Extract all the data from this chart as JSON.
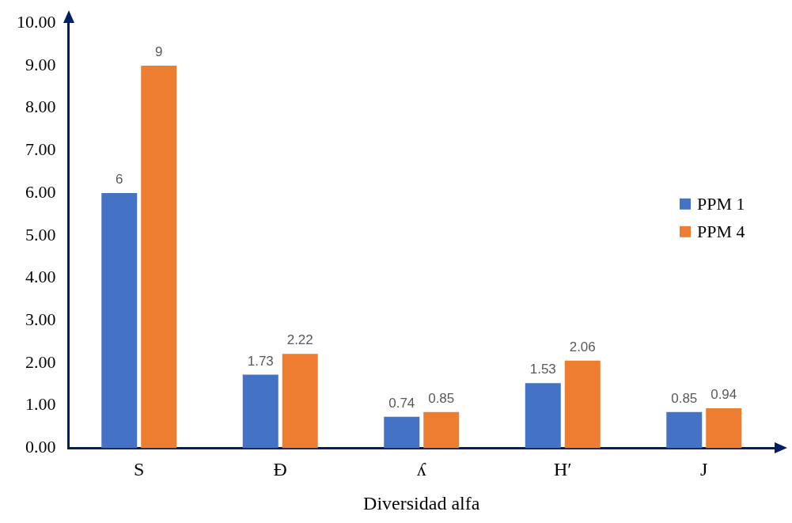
{
  "chart_data": {
    "type": "bar",
    "xlabel": "Diversidad alfa",
    "categories": [
      "S",
      "Đ",
      "ʎ",
      "H′",
      "J"
    ],
    "series": [
      {
        "name": "PPM 1",
        "color": "#4472c4",
        "values": [
          6,
          1.73,
          0.74,
          1.53,
          0.85
        ]
      },
      {
        "name": "PPM 4",
        "color": "#ed7d31",
        "values": [
          9,
          2.22,
          0.85,
          2.06,
          0.94
        ]
      }
    ],
    "ylim": [
      0,
      10
    ],
    "yticks": [
      {
        "value": 0,
        "label": "0.00"
      },
      {
        "value": 1,
        "label": "1.00"
      },
      {
        "value": 2,
        "label": "2.00"
      },
      {
        "value": 3,
        "label": "3.00"
      },
      {
        "value": 4,
        "label": "4.00"
      },
      {
        "value": 5,
        "label": "5.00"
      },
      {
        "value": 6,
        "label": "6.00"
      },
      {
        "value": 7,
        "label": "7.00"
      },
      {
        "value": 8,
        "label": "8.00"
      },
      {
        "value": 9,
        "label": "9.00"
      },
      {
        "value": 10,
        "label": "10.00"
      }
    ],
    "data_labels": true,
    "legend": "right",
    "grid": false
  }
}
